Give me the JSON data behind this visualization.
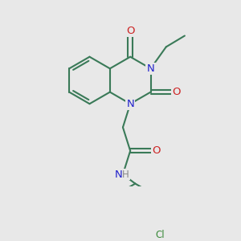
{
  "bg_color": "#e8e8e8",
  "bond_color": "#3a7a58",
  "bond_width": 1.5,
  "atom_colors": {
    "N": "#2222cc",
    "O": "#cc2222",
    "Cl": "#3a8a3a",
    "H": "#888888"
  },
  "font_size": 8.5,
  "fig_size": [
    3.0,
    3.0
  ],
  "dpi": 100
}
